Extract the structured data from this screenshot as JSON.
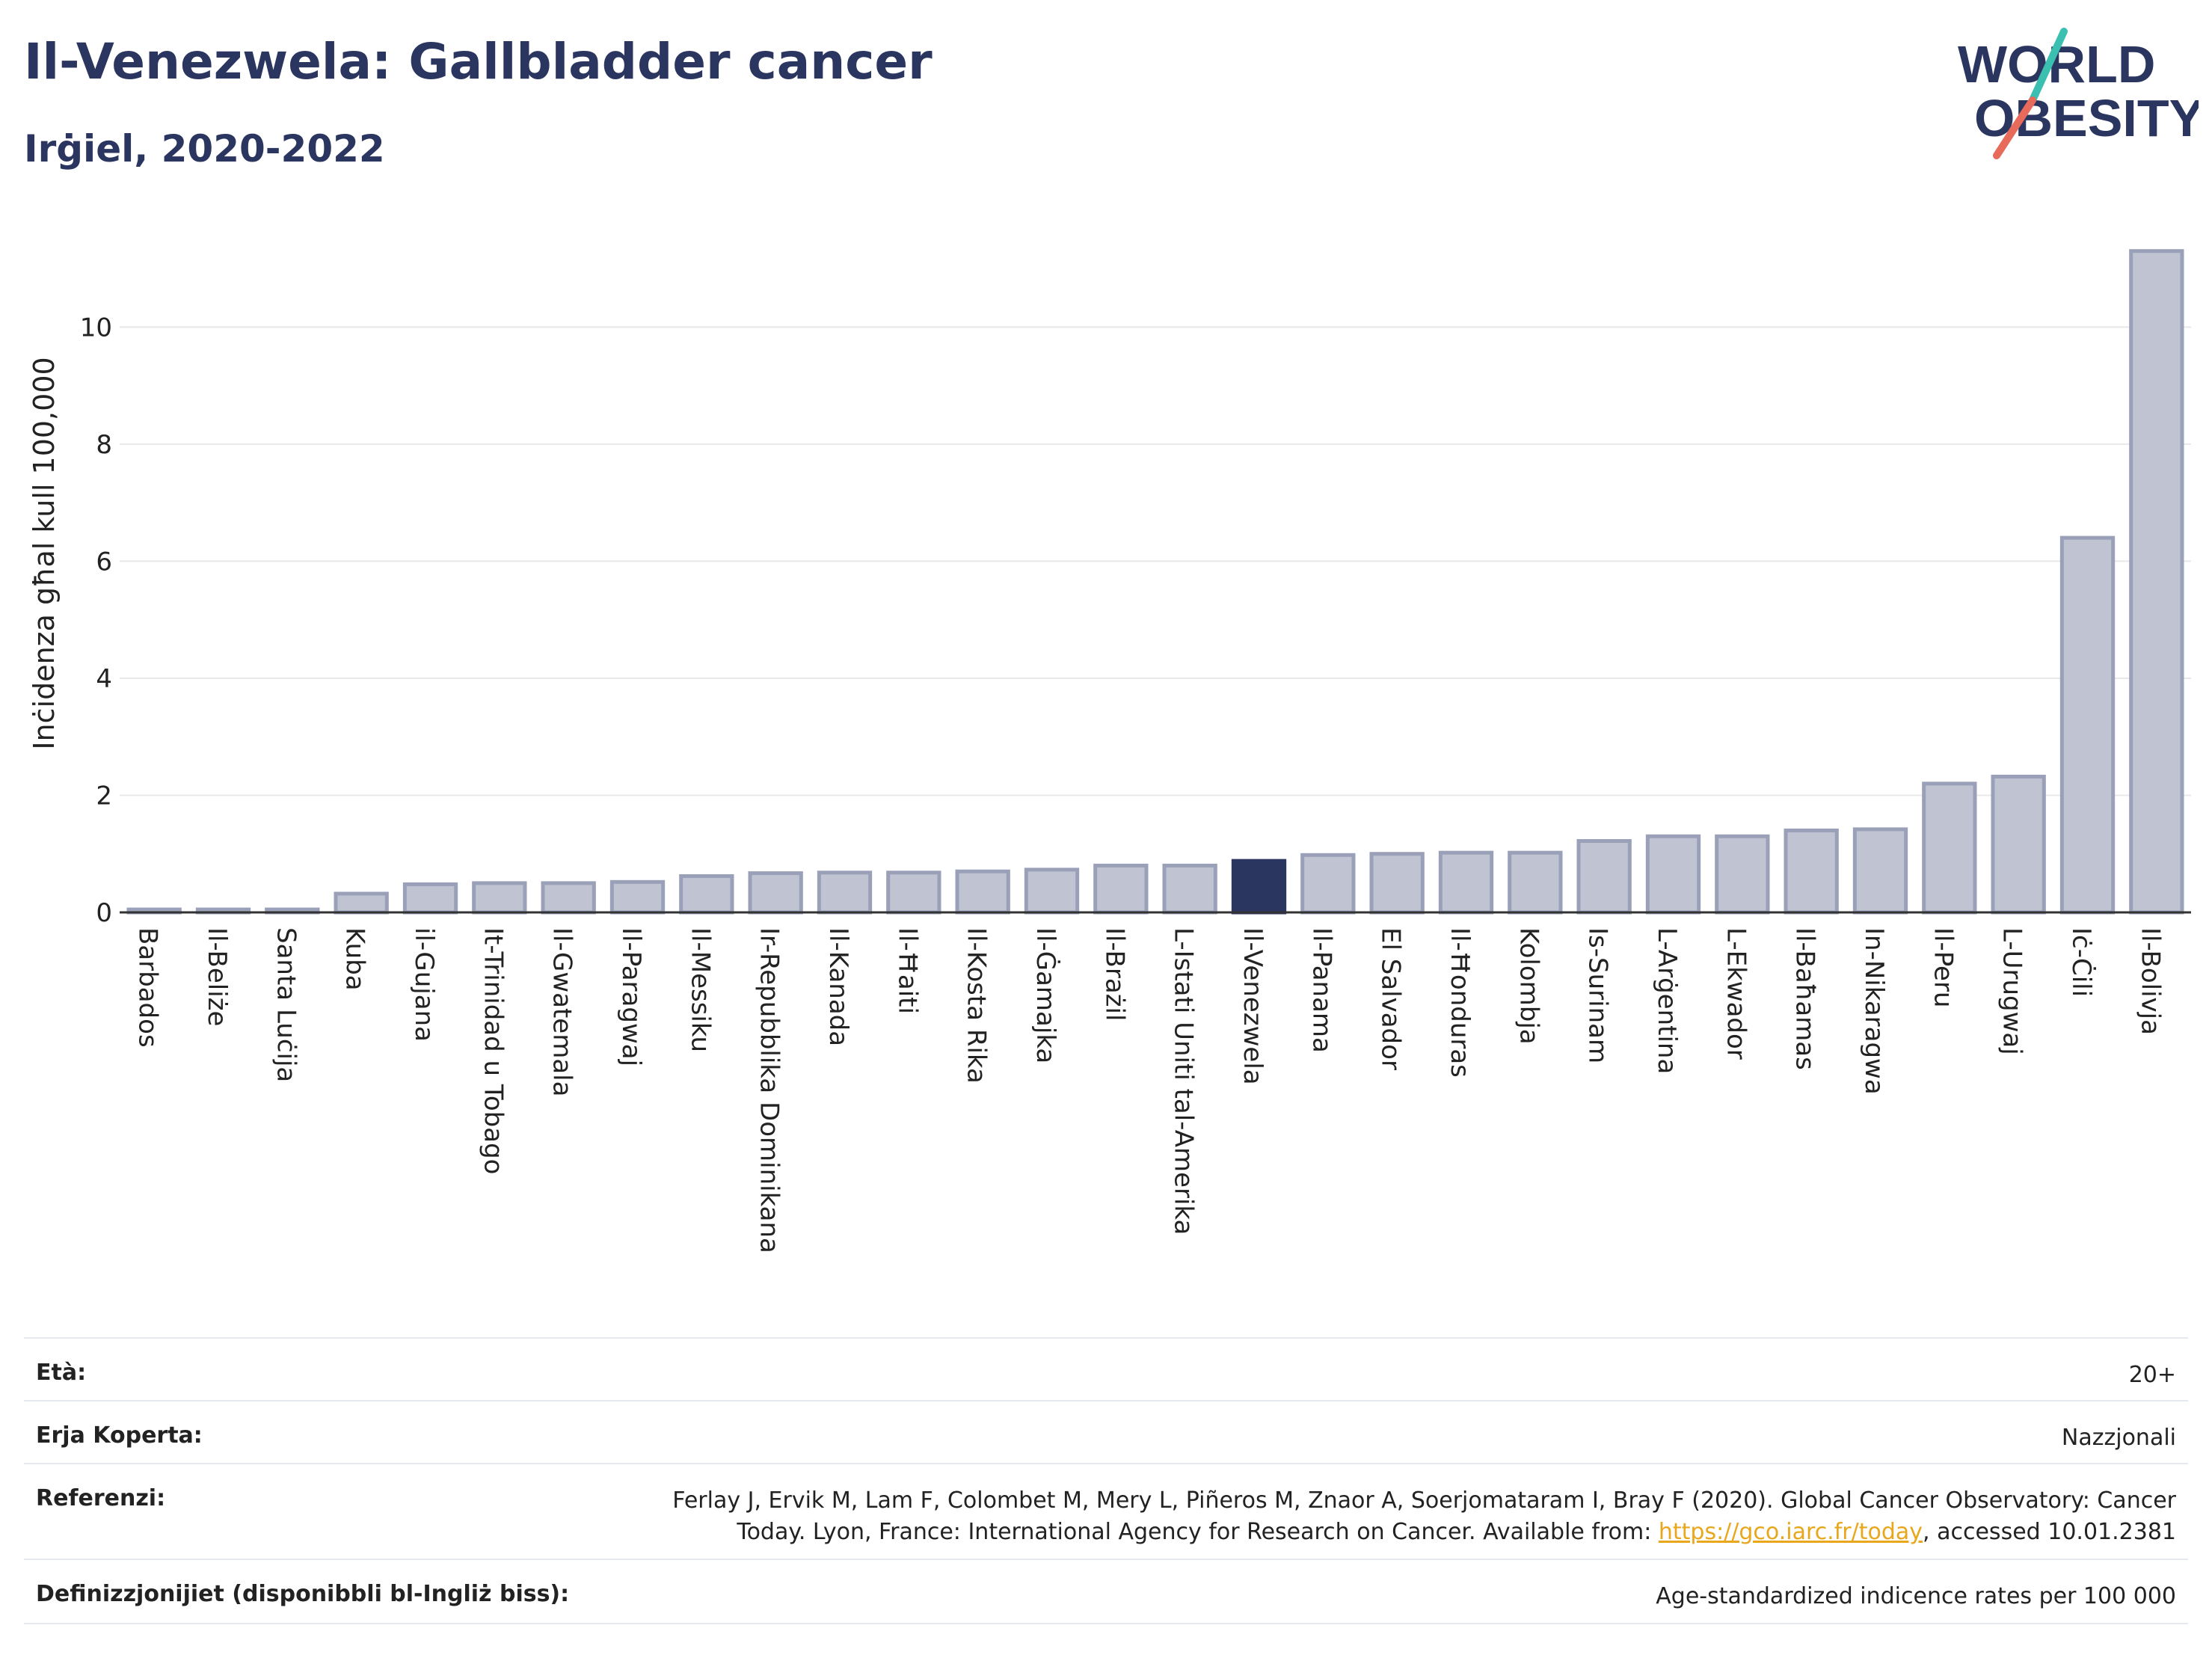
{
  "header": {
    "title": "Il-Venezwela: Gallbladder cancer",
    "subtitle": "Irġiel, 2020-2022"
  },
  "logo": {
    "line1": "WORLD",
    "line2": "OBESITY",
    "colors": {
      "text": "#2b3660",
      "slash_top": "#3bbfb0",
      "slash_bottom": "#e86a5a"
    }
  },
  "colors": {
    "bar_fill": "#bfc3d2",
    "bar_stroke": "#9aa0b8",
    "highlight": "#2b3660",
    "grid": "#e8e8e8",
    "axis_text": "#222222"
  },
  "chart_data": {
    "type": "bar",
    "ylabel": "Inċidenza għal kull 100,000",
    "ylim": [
      0,
      11.5
    ],
    "yticks": [
      0,
      2,
      4,
      6,
      8,
      10
    ],
    "grid": true,
    "highlight": "Il-Venezwela",
    "categories": [
      "Barbados",
      "Il-Beliże",
      "Santa Luċija",
      "Kuba",
      "il-Gujana",
      "It-Trinidad u Tobago",
      "Il-Gwatemala",
      "Il-Paragwaj",
      "Il-Messiku",
      "Ir-Repubblika Dominikana",
      "Il-Kanada",
      "Il-Ħaiti",
      "Il-Kosta Rika",
      "Il-Ġamajka",
      "Il-Brażil",
      "L-Istati Uniti tal-Amerika",
      "Il-Venezwela",
      "Il-Panama",
      "El Salvador",
      "Il-Ħonduras",
      "Kolombja",
      "Is-Surinam",
      "L-Arġentina",
      "L-Ekwador",
      "Il-Baħamas",
      "In-Nikaragwa",
      "Il-Peru",
      "L-Urugwaj",
      "Iċ-Ċili",
      "Il-Bolivja"
    ],
    "values": [
      0.05,
      0.05,
      0.05,
      0.32,
      0.48,
      0.5,
      0.5,
      0.52,
      0.62,
      0.67,
      0.68,
      0.68,
      0.7,
      0.73,
      0.8,
      0.8,
      0.88,
      0.98,
      1.0,
      1.02,
      1.02,
      1.22,
      1.3,
      1.3,
      1.4,
      1.42,
      2.2,
      2.32,
      6.4,
      11.3
    ]
  },
  "meta": {
    "rows": [
      {
        "key": "Età:",
        "value": "20+"
      },
      {
        "key": "Erja Koperta:",
        "value": "Nazzjonali"
      },
      {
        "key": "Referenzi:",
        "value_line1": "Ferlay J, Ervik M, Lam F, Colombet M, Mery L, Piñeros M, Znaor A, Soerjomataram I, Bray F (2020). Global Cancer Observatory: Cancer",
        "value_line2_pre": "Today. Lyon, France: International Agency for Research on Cancer. Available from: ",
        "link": "https://gco.iarc.fr/today",
        "value_line2_post": ", accessed 10.01.2381"
      },
      {
        "key": "Definizzjonijiet (disponibbli bl-Ingliż biss):",
        "value": "Age-standardized indicence rates per 100 000"
      }
    ]
  }
}
